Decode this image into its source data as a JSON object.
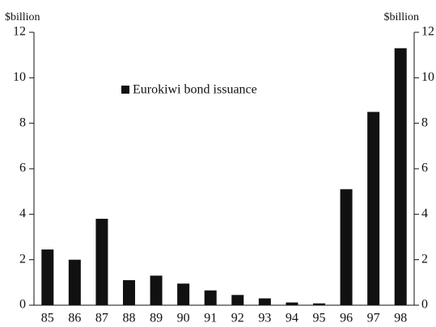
{
  "chart_data": {
    "type": "bar",
    "y_label": "$billion",
    "y2_label": "$billion",
    "categories": [
      "85",
      "86",
      "87",
      "88",
      "89",
      "90",
      "91",
      "92",
      "93",
      "94",
      "95",
      "96",
      "97",
      "98"
    ],
    "series": [
      {
        "name": "Eurokiwi bond issuance",
        "color": "#111111",
        "values": [
          2.45,
          2.0,
          3.8,
          1.1,
          1.3,
          0.95,
          0.65,
          0.45,
          0.3,
          0.12,
          0.08,
          5.1,
          8.5,
          11.3
        ]
      }
    ],
    "ylim": [
      0,
      12
    ],
    "yticks": [
      0,
      2,
      4,
      6,
      8,
      10,
      12
    ],
    "y2lim": [
      0,
      12
    ],
    "y2ticks": [
      0,
      2,
      4,
      6,
      8,
      10,
      12
    ],
    "grid": false
  }
}
